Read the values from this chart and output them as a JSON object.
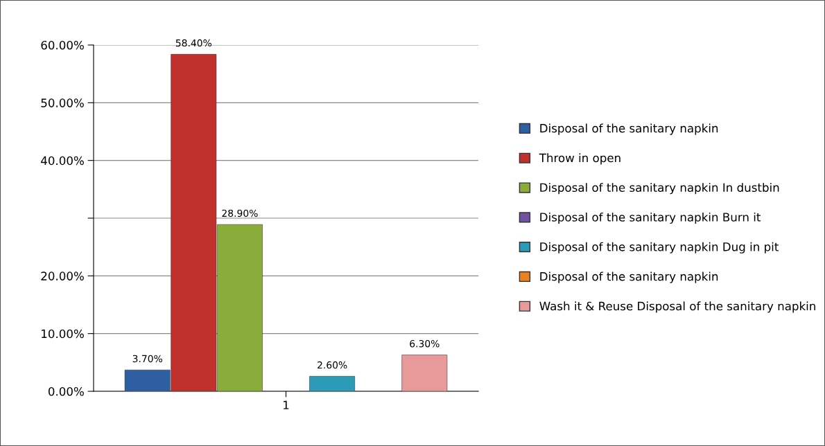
{
  "chart_data": {
    "type": "bar",
    "categories": [
      "1"
    ],
    "series": [
      {
        "name": "Disposal of the sanitary napkin",
        "color": "#2e5fa3",
        "values": [
          3.7
        ],
        "value_labels": [
          "3.70%"
        ]
      },
      {
        "name": "Throw in open",
        "color": "#c0302c",
        "values": [
          58.4
        ],
        "value_labels": [
          "58.40%"
        ]
      },
      {
        "name": "Disposal of the sanitary napkin In dustbin",
        "color": "#8aac3a",
        "values": [
          28.9
        ],
        "value_labels": [
          "28.90%"
        ]
      },
      {
        "name": "Disposal of the sanitary napkin Burn it",
        "color": "#7052a0",
        "values": [
          null
        ],
        "value_labels": [
          null
        ]
      },
      {
        "name": "Disposal of the sanitary napkin Dug in pit",
        "color": "#2b9bb8",
        "values": [
          2.6
        ],
        "value_labels": [
          "2.60%"
        ]
      },
      {
        "name": "Disposal of the sanitary napkin",
        "color": "#e8821e",
        "values": [
          null
        ],
        "value_labels": [
          null
        ]
      },
      {
        "name": "Wash it & Reuse Disposal of the sanitary napkin",
        "color": "#e89a9a",
        "values": [
          6.3
        ],
        "value_labels": [
          "6.30%"
        ]
      }
    ],
    "ylim": [
      0,
      60
    ],
    "yticks": [
      {
        "value": 0,
        "label": "0.00%"
      },
      {
        "value": 10,
        "label": "10.00%"
      },
      {
        "value": 20,
        "label": "20.00%"
      },
      {
        "value": 30,
        "label": null
      },
      {
        "value": 40,
        "label": "40.00%"
      },
      {
        "value": 50,
        "label": "50.00%"
      },
      {
        "value": 60,
        "label": "60.00%"
      }
    ],
    "grid": "y",
    "legend": "right"
  }
}
